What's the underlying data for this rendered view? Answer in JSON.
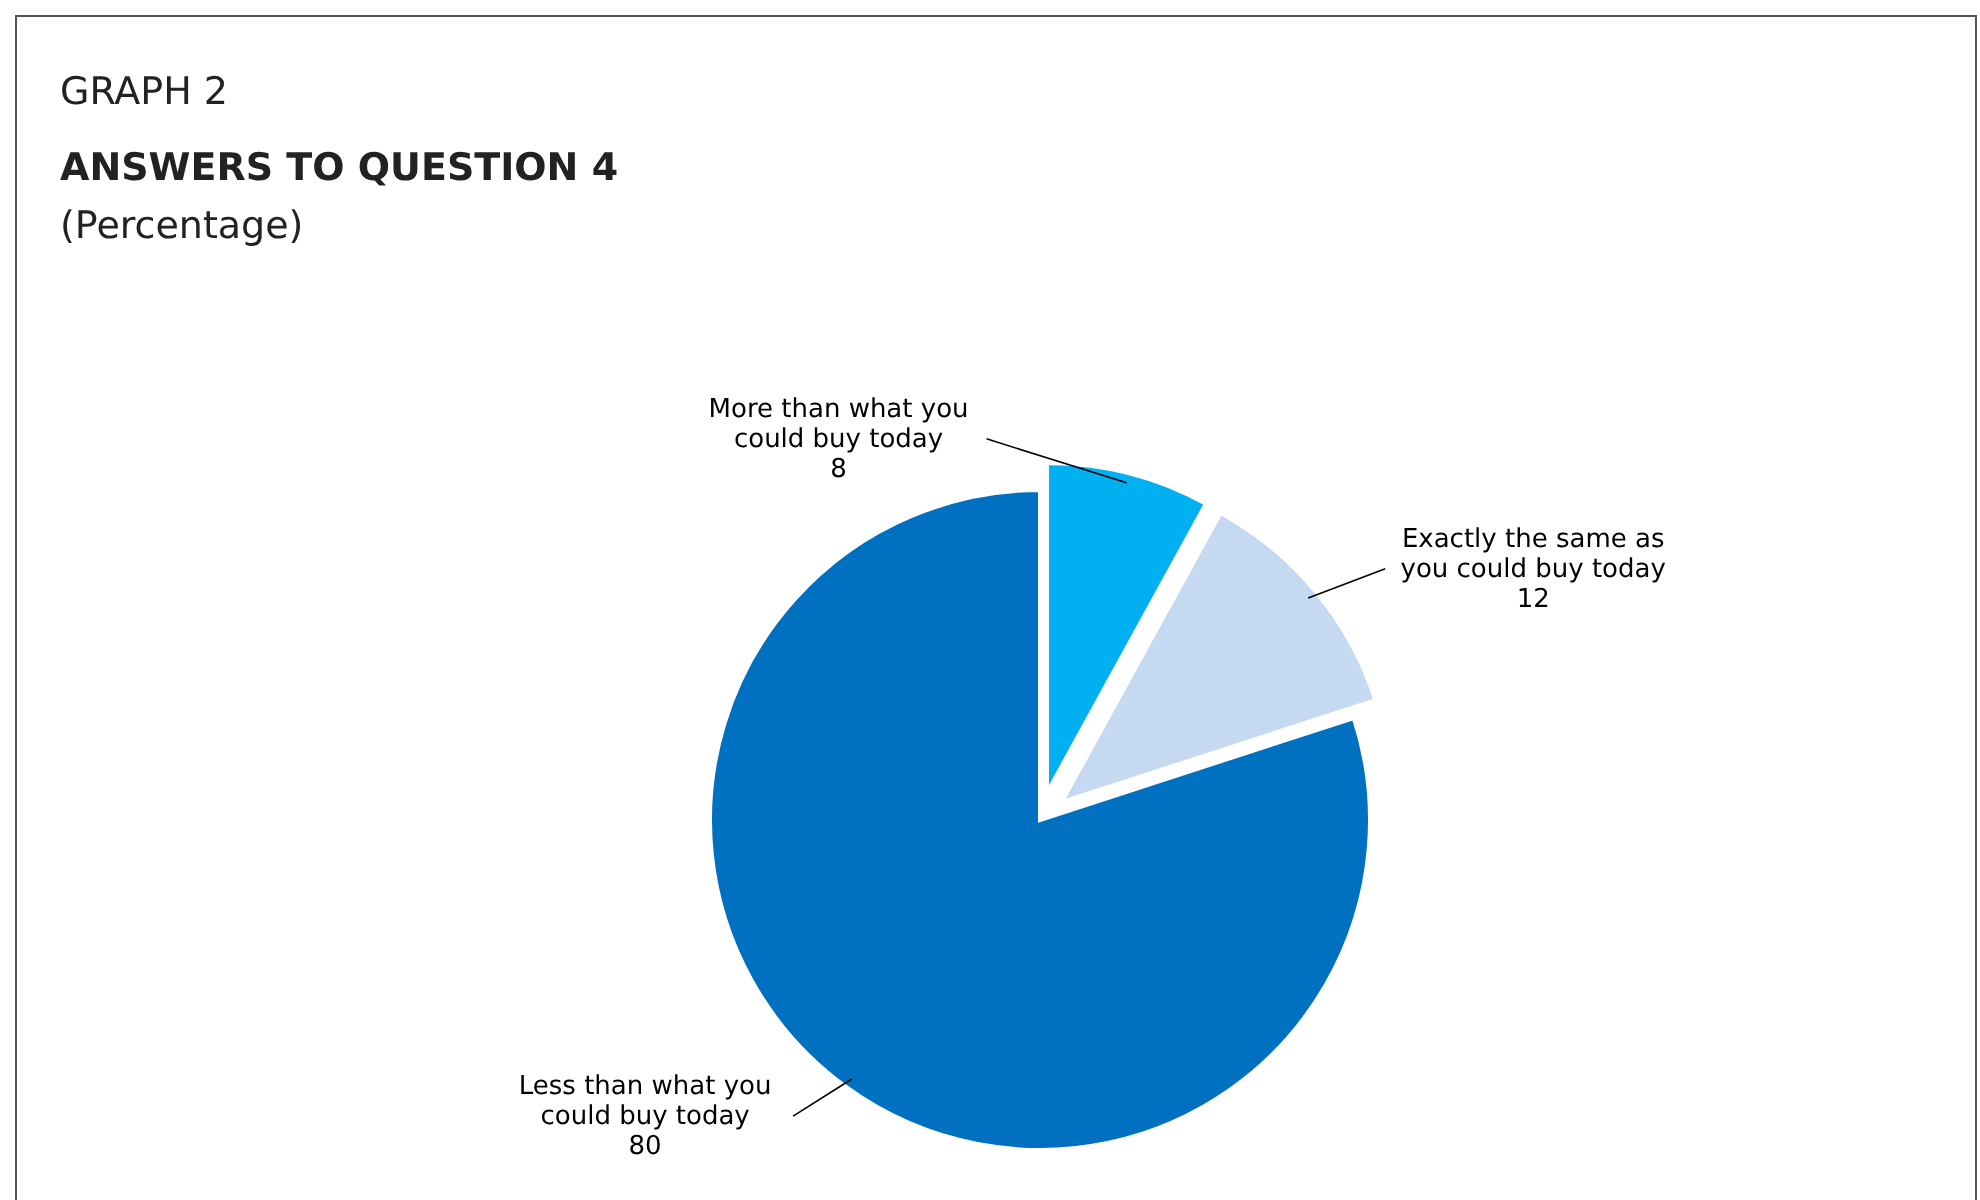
{
  "chart_data": {
    "type": "pie",
    "title": "ANSWERS TO QUESTION 4",
    "subtitle": "(Percentage)",
    "annotations": [
      "GRAPH 2"
    ],
    "categories": [
      "More than what you could buy today",
      "Exactly the same as you could buy today",
      "Less than what you could buy today"
    ],
    "values": [
      8,
      12,
      80
    ],
    "colors": [
      "#00b0f0",
      "#c5d9f1",
      "#0070c0"
    ],
    "data_labels": true
  }
}
